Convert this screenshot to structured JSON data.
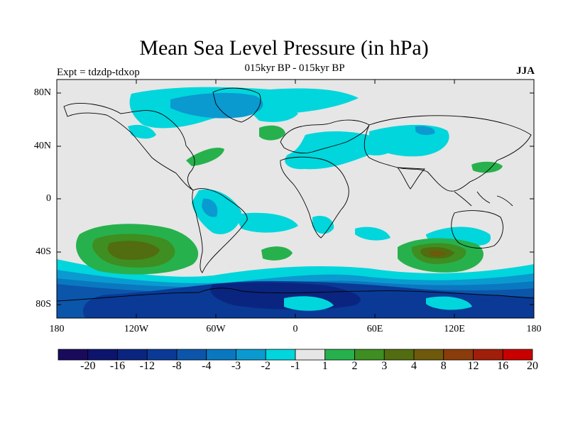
{
  "title": "Mean Sea Level Pressure (in hPa)",
  "subtitle": "015kyr BP - 015kyr BP",
  "left_label": "Expt = tdzdp-tdxop",
  "right_label": "JJA",
  "lat_labels": [
    "80N",
    "40N",
    "0",
    "40S",
    "80S"
  ],
  "lon_labels": [
    "180",
    "120W",
    "60W",
    "0",
    "60E",
    "120E",
    "180"
  ],
  "colorbar": {
    "labels": [
      "-20",
      "-16",
      "-12",
      "-8",
      "-4",
      "-3",
      "-2",
      "-1",
      "1",
      "2",
      "3",
      "4",
      "8",
      "12",
      "16",
      "20"
    ],
    "colors": [
      "#1a0a5c",
      "#0d146e",
      "#0a2580",
      "#0a3a96",
      "#0b56aa",
      "#0a78c0",
      "#0a9ad0",
      "#00d6dc",
      "#e6e6e6",
      "#27b14d",
      "#3e8e22",
      "#516d10",
      "#6e5a0a",
      "#8a3c0a",
      "#a01e0a",
      "#c80000"
    ]
  }
}
